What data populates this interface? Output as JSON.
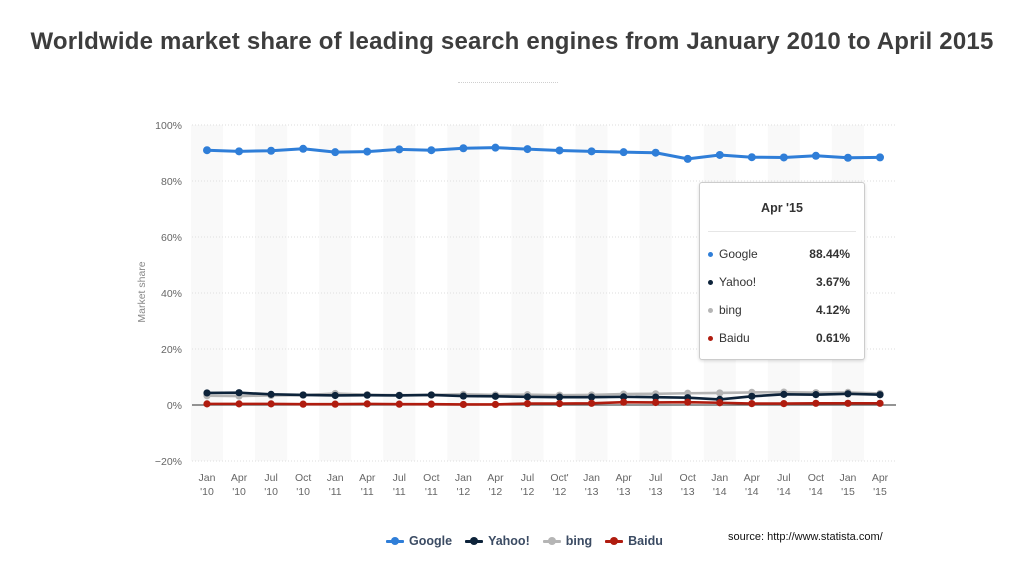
{
  "title": "Worldwide market share of leading search engines from January 2010 to April 2015",
  "source": "source: http://www.statista.com/",
  "tooltip": {
    "title": "Apr '15",
    "rows": [
      {
        "name": "Google",
        "value": "88.44%"
      },
      {
        "name": "Yahoo!",
        "value": "3.67%"
      },
      {
        "name": "bing",
        "value": "4.12%"
      },
      {
        "name": "Baidu",
        "value": "0.61%"
      }
    ]
  },
  "legend": [
    {
      "name": "Google",
      "color": "#2f7ed8"
    },
    {
      "name": "Yahoo!",
      "color": "#0d233a"
    },
    {
      "name": "bing",
      "color": "#b5b5b5"
    },
    {
      "name": "Baidu",
      "color": "#b01c0f"
    }
  ],
  "chart_data": {
    "type": "line",
    "title": "Worldwide market share of leading search engines from January 2010 to April 2015",
    "xlabel": "",
    "ylabel": "Market share",
    "ylim": [
      -20,
      100
    ],
    "yticks": [
      "−20%",
      "0%",
      "20%",
      "40%",
      "60%",
      "80%",
      "100%"
    ],
    "ytick_values": [
      -20,
      0,
      20,
      40,
      60,
      80,
      100
    ],
    "grid": true,
    "legend_position": "bottom-center",
    "categories": [
      [
        "Jan",
        "'10"
      ],
      [
        "Apr",
        "'10"
      ],
      [
        "Jul",
        "'10"
      ],
      [
        "Oct",
        "'10"
      ],
      [
        "Jan",
        "'11"
      ],
      [
        "Apr",
        "'11"
      ],
      [
        "Jul",
        "'11"
      ],
      [
        "Oct",
        "'11"
      ],
      [
        "Jan",
        "'12"
      ],
      [
        "Apr",
        "'12"
      ],
      [
        "Jul",
        "'12"
      ],
      [
        "Oct'",
        "'12"
      ],
      [
        "Jan",
        "'13"
      ],
      [
        "Apr",
        "'13"
      ],
      [
        "Jul",
        "'13"
      ],
      [
        "Oct",
        "'13"
      ],
      [
        "Jan",
        "'14"
      ],
      [
        "Apr",
        "'14"
      ],
      [
        "Jul",
        "'14"
      ],
      [
        "Oct",
        "'14"
      ],
      [
        "Jan",
        "'15"
      ],
      [
        "Apr",
        "'15"
      ]
    ],
    "series": [
      {
        "name": "Google",
        "color": "#2f7ed8",
        "values": [
          91.0,
          90.6,
          90.8,
          91.5,
          90.3,
          90.5,
          91.3,
          91.0,
          91.7,
          91.9,
          91.4,
          90.9,
          90.6,
          90.3,
          90.1,
          87.9,
          89.3,
          88.5,
          88.4,
          89.0,
          88.3,
          88.44
        ]
      },
      {
        "name": "Yahoo!",
        "color": "#0d233a",
        "values": [
          4.3,
          4.4,
          3.8,
          3.6,
          3.4,
          3.5,
          3.4,
          3.6,
          3.2,
          3.1,
          2.9,
          2.8,
          2.8,
          2.9,
          2.8,
          2.6,
          2.0,
          3.1,
          3.8,
          3.7,
          4.0,
          3.67
        ]
      },
      {
        "name": "bing",
        "color": "#b5b5b5",
        "values": [
          3.3,
          3.2,
          3.4,
          3.5,
          4.1,
          3.7,
          3.5,
          3.6,
          3.8,
          3.6,
          3.7,
          3.5,
          3.6,
          3.9,
          4.0,
          4.2,
          4.3,
          4.5,
          4.6,
          4.4,
          4.5,
          4.12
        ]
      },
      {
        "name": "Baidu",
        "color": "#b01c0f",
        "values": [
          0.4,
          0.4,
          0.4,
          0.3,
          0.3,
          0.4,
          0.3,
          0.3,
          0.2,
          0.2,
          0.5,
          0.5,
          0.6,
          1.0,
          0.9,
          1.0,
          0.8,
          0.5,
          0.5,
          0.6,
          0.6,
          0.61
        ]
      }
    ]
  }
}
